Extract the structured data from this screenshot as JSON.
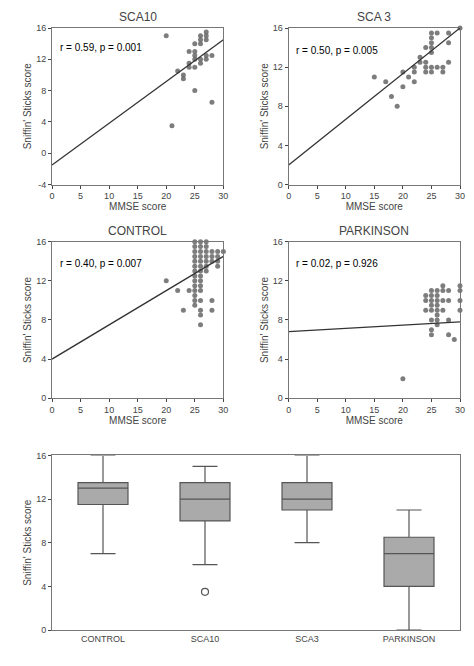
{
  "chart_data": [
    {
      "type": "scatter",
      "title": "SCA10",
      "xlabel": "MMSE score",
      "ylabel": "Sniffin' Sticks score",
      "xlim": [
        0,
        30
      ],
      "ylim": [
        -4,
        16
      ],
      "xticks": [
        0,
        5,
        10,
        15,
        20,
        25,
        30
      ],
      "yticks": [
        -4,
        0,
        4,
        8,
        12,
        16
      ],
      "grid": false,
      "series": [
        {
          "type": "scatter",
          "marker": "circle",
          "color": "#666666",
          "x": [
            20,
            22,
            23,
            23,
            24,
            24,
            24,
            25,
            25,
            25,
            25,
            25,
            25,
            26,
            26,
            26,
            26,
            26,
            27,
            27,
            27,
            27,
            27,
            28,
            28,
            21
          ],
          "values": [
            15,
            10.5,
            10,
            9.5,
            13,
            11,
            11.5,
            14,
            13,
            12.5,
            12,
            11,
            8,
            15,
            14.5,
            14,
            12,
            11.5,
            15.5,
            15,
            14.5,
            12.5,
            12,
            12.5,
            6.5,
            3.5
          ]
        },
        {
          "type": "line",
          "line_style": "solid",
          "color": "#333333",
          "x": [
            0,
            30
          ],
          "values": [
            -1.5,
            14.5
          ]
        }
      ],
      "annotations": [
        {
          "text": "r = 0.59, p = 0.001",
          "x": 1.0,
          "y": 14.5
        }
      ]
    },
    {
      "type": "scatter",
      "title": "SCA 3",
      "xlabel": "MMSE score",
      "ylabel": "Sniffin' Sticks score",
      "xlim": [
        0,
        30
      ],
      "ylim": [
        0,
        16
      ],
      "xticks": [
        0,
        5,
        10,
        15,
        20,
        25,
        30
      ],
      "yticks": [
        0,
        4,
        8,
        12,
        16
      ],
      "grid": false,
      "series": [
        {
          "type": "scatter",
          "marker": "circle",
          "color": "#666666",
          "x": [
            15,
            17,
            18,
            19,
            20,
            20,
            21,
            22,
            22,
            22,
            23,
            23,
            24,
            24,
            24,
            24,
            25,
            25,
            25,
            25,
            25,
            25,
            25,
            26,
            26,
            27,
            27,
            28,
            28,
            28,
            30
          ],
          "values": [
            11,
            10.5,
            9,
            8,
            11.5,
            10,
            11,
            12,
            11.5,
            10.5,
            13,
            12.5,
            14,
            12.5,
            12,
            11.5,
            15.5,
            15,
            14.5,
            14,
            13.5,
            12,
            11.5,
            15.5,
            12,
            12,
            11.5,
            15.5,
            14.5,
            12.5,
            16
          ]
        },
        {
          "type": "line",
          "line_style": "solid",
          "color": "#333333",
          "x": [
            0,
            30
          ],
          "values": [
            2,
            16
          ]
        }
      ],
      "annotations": [
        {
          "text": "r = 0.50, p = 0.005",
          "x": 1.0,
          "y": 14.5
        }
      ]
    },
    {
      "type": "scatter",
      "title": "CONTROL",
      "xlabel": "MMSE score",
      "ylabel": "Sniffin' Sticks score",
      "xlim": [
        0,
        30
      ],
      "ylim": [
        0,
        16
      ],
      "xticks": [
        0,
        5,
        10,
        15,
        20,
        25,
        30
      ],
      "yticks": [
        0,
        4,
        8,
        12,
        16
      ],
      "grid": false,
      "series": [
        {
          "type": "scatter",
          "marker": "circle",
          "color": "#666666",
          "x": [
            20,
            22,
            23,
            24,
            25,
            25,
            25,
            25,
            25,
            25,
            25,
            25,
            25,
            25,
            25,
            25,
            25,
            25,
            26,
            26,
            26,
            26,
            26,
            26,
            26,
            26,
            26,
            26,
            26,
            26,
            26,
            26,
            26,
            27,
            27,
            27,
            27,
            27,
            27,
            27,
            28,
            28,
            28,
            28,
            28,
            29,
            29,
            29,
            29,
            30
          ],
          "values": [
            12,
            11,
            9,
            11,
            16,
            15.5,
            15,
            14.5,
            14,
            13.5,
            13,
            12.5,
            12,
            11.5,
            11,
            10.5,
            10,
            9.5,
            16,
            15.5,
            15,
            14.5,
            14,
            13.5,
            13,
            12.5,
            12,
            11.5,
            11,
            10,
            9,
            8.5,
            7.5,
            16,
            15.5,
            15,
            14.5,
            14,
            13.5,
            13,
            15,
            14.5,
            14,
            10,
            9,
            15,
            14.5,
            14,
            13.5,
            15
          ]
        },
        {
          "type": "line",
          "line_style": "solid",
          "color": "#333333",
          "x": [
            0,
            30
          ],
          "values": [
            4,
            14.5
          ]
        }
      ],
      "annotations": [
        {
          "text": "r = 0.40, p = 0.007",
          "x": 1.0,
          "y": 14.5
        }
      ]
    },
    {
      "type": "scatter",
      "title": "PARKINSON",
      "xlabel": "MMSE score",
      "ylabel": "Sniffin' Sticks score",
      "xlim": [
        0,
        30
      ],
      "ylim": [
        0,
        16
      ],
      "xticks": [
        0,
        5,
        10,
        15,
        20,
        25,
        30
      ],
      "yticks": [
        0,
        4,
        8,
        12,
        16
      ],
      "grid": false,
      "series": [
        {
          "type": "scatter",
          "marker": "circle",
          "color": "#666666",
          "x": [
            20,
            24,
            24,
            24,
            25,
            25,
            25,
            25,
            25,
            25,
            25,
            25,
            26,
            26,
            26,
            26,
            26,
            26,
            26,
            26,
            27,
            27,
            27,
            27,
            28,
            28,
            28,
            28,
            29,
            30,
            30,
            30,
            30
          ],
          "values": [
            2,
            10.5,
            10,
            9,
            11,
            10.5,
            10,
            9.5,
            9,
            8,
            7,
            6.5,
            11,
            10.5,
            10,
            9.5,
            9,
            8.5,
            8,
            7.5,
            11.5,
            11,
            10,
            9,
            11,
            10,
            8,
            6.5,
            6,
            11.5,
            11,
            10,
            9
          ]
        },
        {
          "type": "line",
          "line_style": "solid",
          "color": "#333333",
          "x": [
            0,
            30
          ],
          "values": [
            6.8,
            7.8
          ]
        }
      ],
      "annotations": [
        {
          "text": "r = 0.02, p = 0.926",
          "x": 1.0,
          "y": 14.5
        }
      ]
    },
    {
      "type": "box",
      "categories": [
        "CONTROL",
        "SCA10",
        "SCA3",
        "PARKINSON"
      ],
      "ylabel": "Sniffin' Sticks score",
      "ylim": [
        0,
        16
      ],
      "yticks": [
        0,
        4,
        8,
        12,
        16
      ],
      "grid": false,
      "color": "#555555",
      "median": [
        13.0,
        12.0,
        12.0,
        7.0
      ],
      "q1": [
        11.5,
        10.0,
        11.0,
        4.0
      ],
      "q3": [
        13.5,
        13.5,
        13.5,
        8.5
      ],
      "whisker_low": [
        7.0,
        6.0,
        8.0,
        0.0
      ],
      "whisker_high": [
        16.0,
        15.0,
        16.0,
        11.0
      ],
      "outliers": [
        [],
        [
          3.5
        ],
        [],
        []
      ]
    }
  ]
}
